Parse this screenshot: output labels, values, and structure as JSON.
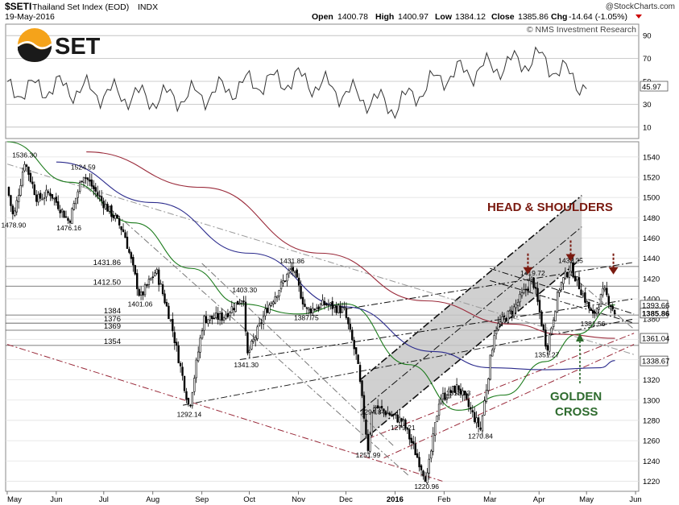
{
  "header": {
    "symbol": "$SETI",
    "name": "Thailand Set Index (EOD)",
    "exchange": "INDX",
    "date": "19-May-2016",
    "open_label": "Open",
    "open": "1400.78",
    "high_label": "High",
    "high": "1400.97",
    "low_label": "Low",
    "low": "1384.12",
    "close_label": "Close",
    "close": "1385.86",
    "chg_label": "Chg",
    "chg": "-14.64 (-1.05%)",
    "source": "@StockCharts.com",
    "credit": "© NMS Investment Research",
    "logo_text": "SET"
  },
  "colors": {
    "ma_green": "#1a7a1a",
    "ma_navy": "#2a2a8c",
    "ma_maroon": "#9a2a3a",
    "annotation_red": "#7a1a10",
    "annotation_green": "#2e6b2e",
    "channel_fill": "#c8c8c8"
  },
  "chart_data": [
    {
      "type": "line",
      "panel": "RSI",
      "y_ticks": [
        10,
        30,
        50,
        70,
        90
      ],
      "ylim": [
        0,
        100
      ],
      "last_value": "45.97",
      "x": [
        "2015-05",
        "2015-06",
        "2015-07",
        "2015-08",
        "2015-09",
        "2015-10",
        "2015-11",
        "2015-12",
        "2016-01",
        "2016-02",
        "2016-03",
        "2016-04",
        "2016-05"
      ],
      "values": [
        42,
        45,
        40,
        35,
        38,
        48,
        52,
        40,
        28,
        55,
        62,
        70,
        46
      ]
    },
    {
      "type": "candlestick",
      "panel": "price",
      "x_ticks": [
        "May",
        "Jun",
        "Jul",
        "Aug",
        "Sep",
        "Oct",
        "Nov",
        "Dec",
        "2016",
        "Feb",
        "Mar",
        "Apr",
        "May",
        "Jun"
      ],
      "y_ticks": [
        1220,
        1240,
        1260,
        1280,
        1300,
        1320,
        1340,
        1360,
        1380,
        1400,
        1420,
        1440,
        1460,
        1480,
        1500,
        1520,
        1540
      ],
      "ylim": [
        1210,
        1555
      ],
      "pivot_labels": [
        {
          "text": "1536.30",
          "date": "2015-05-12",
          "value": 1536.3
        },
        {
          "text": "1478.90",
          "date": "2015-05-05",
          "value": 1478.9
        },
        {
          "text": "1524.59",
          "date": "2015-06-18",
          "value": 1524.59
        },
        {
          "text": "1476.16",
          "date": "2015-06-09",
          "value": 1476.16
        },
        {
          "text": "1401.06",
          "date": "2015-07-24",
          "value": 1401.06
        },
        {
          "text": "1292.14",
          "date": "2015-08-24",
          "value": 1292.14
        },
        {
          "text": "1403.30",
          "date": "2015-09-28",
          "value": 1403.3
        },
        {
          "text": "1341.30",
          "date": "2015-09-29",
          "value": 1341.3
        },
        {
          "text": "1431.86",
          "date": "2015-10-28",
          "value": 1431.86
        },
        {
          "text": "1387.75",
          "date": "2015-11-06",
          "value": 1387.75
        },
        {
          "text": "1294.84",
          "date": "2015-12-18",
          "value": 1294.84
        },
        {
          "text": "1251.99",
          "date": "2015-12-15",
          "value": 1251.99
        },
        {
          "text": "1279.21",
          "date": "2016-01-06",
          "value": 1279.21
        },
        {
          "text": "1220.96",
          "date": "2016-01-21",
          "value": 1220.96
        },
        {
          "text": "1313.23",
          "date": "2016-02-10",
          "value": 1313.23
        },
        {
          "text": "1270.84",
          "date": "2016-02-24",
          "value": 1270.84
        },
        {
          "text": "1419.72",
          "date": "2016-03-28",
          "value": 1419.72
        },
        {
          "text": "1351.27",
          "date": "2016-04-06",
          "value": 1351.27
        },
        {
          "text": "1432.25",
          "date": "2016-04-21",
          "value": 1432.25
        },
        {
          "text": "1381.56",
          "date": "2016-05-05",
          "value": 1381.56
        }
      ],
      "horizontal_levels": [
        {
          "label": "1431.86",
          "value": 1431.86
        },
        {
          "label": "1412.50",
          "value": 1412.5
        },
        {
          "label": "1384",
          "value": 1384
        },
        {
          "label": "1376",
          "value": 1376
        },
        {
          "label": "1369",
          "value": 1369
        },
        {
          "label": "1354",
          "value": 1354
        }
      ],
      "right_tags": [
        {
          "text": "1393.66",
          "value": 1393.66
        },
        {
          "text": "1385.86",
          "value": 1385.86
        },
        {
          "text": "1361.04",
          "value": 1361.04
        },
        {
          "text": "1338.67",
          "value": 1338.67
        }
      ],
      "close_path": [
        [
          "2015-05-01",
          1510
        ],
        [
          "2015-05-05",
          1479
        ],
        [
          "2015-05-12",
          1536
        ],
        [
          "2015-05-20",
          1498
        ],
        [
          "2015-05-28",
          1505
        ],
        [
          "2015-06-09",
          1476
        ],
        [
          "2015-06-18",
          1524
        ],
        [
          "2015-06-30",
          1496
        ],
        [
          "2015-07-08",
          1480
        ],
        [
          "2015-07-14",
          1465
        ],
        [
          "2015-07-24",
          1401
        ],
        [
          "2015-08-03",
          1428
        ],
        [
          "2015-08-12",
          1380
        ],
        [
          "2015-08-24",
          1292
        ],
        [
          "2015-09-02",
          1380
        ],
        [
          "2015-09-14",
          1382
        ],
        [
          "2015-09-28",
          1403
        ],
        [
          "2015-09-29",
          1341
        ],
        [
          "2015-10-12",
          1390
        ],
        [
          "2015-10-28",
          1431
        ],
        [
          "2015-11-06",
          1388
        ],
        [
          "2015-11-18",
          1395
        ],
        [
          "2015-11-30",
          1388
        ],
        [
          "2015-12-08",
          1340
        ],
        [
          "2015-12-15",
          1252
        ],
        [
          "2015-12-18",
          1295
        ],
        [
          "2016-01-06",
          1279
        ],
        [
          "2016-01-21",
          1221
        ],
        [
          "2016-01-29",
          1301
        ],
        [
          "2016-02-10",
          1313
        ],
        [
          "2016-02-24",
          1271
        ],
        [
          "2016-03-04",
          1370
        ],
        [
          "2016-03-16",
          1390
        ],
        [
          "2016-03-28",
          1420
        ],
        [
          "2016-04-06",
          1351
        ],
        [
          "2016-04-14",
          1412
        ],
        [
          "2016-04-21",
          1432
        ],
        [
          "2016-05-05",
          1382
        ],
        [
          "2016-05-12",
          1408
        ],
        [
          "2016-05-19",
          1386
        ]
      ],
      "moving_averages": [
        {
          "color": "green",
          "points": [
            [
              "2015-05-01",
              1555
            ],
            [
              "2015-06-10",
              1515
            ],
            [
              "2015-07-20",
              1475
            ],
            [
              "2015-08-25",
              1430
            ],
            [
              "2015-09-25",
              1395
            ],
            [
              "2015-11-01",
              1385
            ],
            [
              "2015-12-01",
              1395
            ],
            [
              "2016-01-10",
              1335
            ],
            [
              "2016-02-10",
              1290
            ],
            [
              "2016-03-10",
              1305
            ],
            [
              "2016-04-05",
              1338
            ],
            [
              "2016-04-25",
              1365
            ],
            [
              "2016-05-19",
              1394
            ]
          ]
        },
        {
          "color": "navy",
          "points": [
            [
              "2015-06-01",
              1535
            ],
            [
              "2015-08-01",
              1495
            ],
            [
              "2015-10-01",
              1445
            ],
            [
              "2015-12-01",
              1392
            ],
            [
              "2016-01-25",
              1348
            ],
            [
              "2016-03-01",
              1332
            ],
            [
              "2016-04-05",
              1330
            ],
            [
              "2016-05-10",
              1332
            ],
            [
              "2016-05-19",
              1339
            ]
          ]
        },
        {
          "color": "maroon",
          "points": [
            [
              "2015-06-20",
              1545
            ],
            [
              "2015-09-01",
              1510
            ],
            [
              "2015-11-15",
              1445
            ],
            [
              "2016-01-20",
              1398
            ],
            [
              "2016-03-15",
              1375
            ],
            [
              "2016-04-15",
              1365
            ],
            [
              "2016-05-19",
              1361
            ]
          ]
        }
      ],
      "trendlines": [
        {
          "style": "dashdot",
          "color": "#111",
          "from": [
            "2015-08-20",
            1295
          ],
          "to": [
            "2016-05-31",
            1380
          ]
        },
        {
          "style": "dashdot",
          "color": "#111",
          "from": [
            "2015-09-25",
            1340
          ],
          "to": [
            "2016-05-31",
            1400
          ]
        },
        {
          "style": "dashdot",
          "color": "#111",
          "from": [
            "2015-12-01",
            1390
          ],
          "to": [
            "2016-05-31",
            1436
          ]
        },
        {
          "style": "dashdot",
          "color": "#999",
          "from": [
            "2015-05-01",
            1533
          ],
          "to": [
            "2016-05-31",
            1345
          ]
        },
        {
          "style": "dashdot",
          "color": "#9a2a3a",
          "from": [
            "2015-05-01",
            1355
          ],
          "to": [
            "2016-01-31",
            1220
          ]
        },
        {
          "style": "dashdot",
          "color": "#9a2a3a",
          "from": [
            "2015-12-15",
            1262
          ],
          "to": [
            "2016-05-31",
            1366
          ]
        },
        {
          "style": "dashdot",
          "color": "#9a2a3a",
          "from": [
            "2015-12-25",
            1243
          ],
          "to": [
            "2016-05-31",
            1355
          ]
        },
        {
          "style": "dashdot",
          "color": "#111",
          "from": [
            "2016-03-01",
            1418
          ],
          "to": [
            "2016-05-31",
            1376
          ]
        },
        {
          "style": "dashdot",
          "color": "#111",
          "from": [
            "2016-03-01",
            1430
          ],
          "to": [
            "2016-05-31",
            1385
          ]
        },
        {
          "style": "dashdot",
          "color": "#777",
          "from": [
            "2015-09-01",
            1435
          ],
          "to": [
            "2015-12-31",
            1255
          ]
        },
        {
          "style": "dashdot",
          "color": "#777",
          "from": [
            "2015-06-20",
            1510
          ],
          "to": [
            "2016-01-10",
            1225
          ]
        },
        {
          "style": "dashdot",
          "color": "#777",
          "from": [
            "2016-04-20",
            1425
          ],
          "to": [
            "2016-05-31",
            1370
          ]
        }
      ],
      "channel": {
        "lower": [
          [
            "2015-12-10",
            1258
          ],
          [
            "2016-04-28",
            1440
          ]
        ],
        "upper_offset": 62
      },
      "annotations": [
        {
          "text": "HEAD & SHOULDERS",
          "color": "#7a1a10"
        },
        {
          "text": "GOLDEN",
          "color": "#2e6b2e"
        },
        {
          "text": "CROSS",
          "color": "#2e6b2e"
        }
      ],
      "shoulder_arrows": [
        {
          "date": "2016-03-25",
          "value": 1424
        },
        {
          "date": "2016-04-21",
          "value": 1437
        },
        {
          "date": "2016-05-18",
          "value": 1424
        }
      ]
    }
  ]
}
